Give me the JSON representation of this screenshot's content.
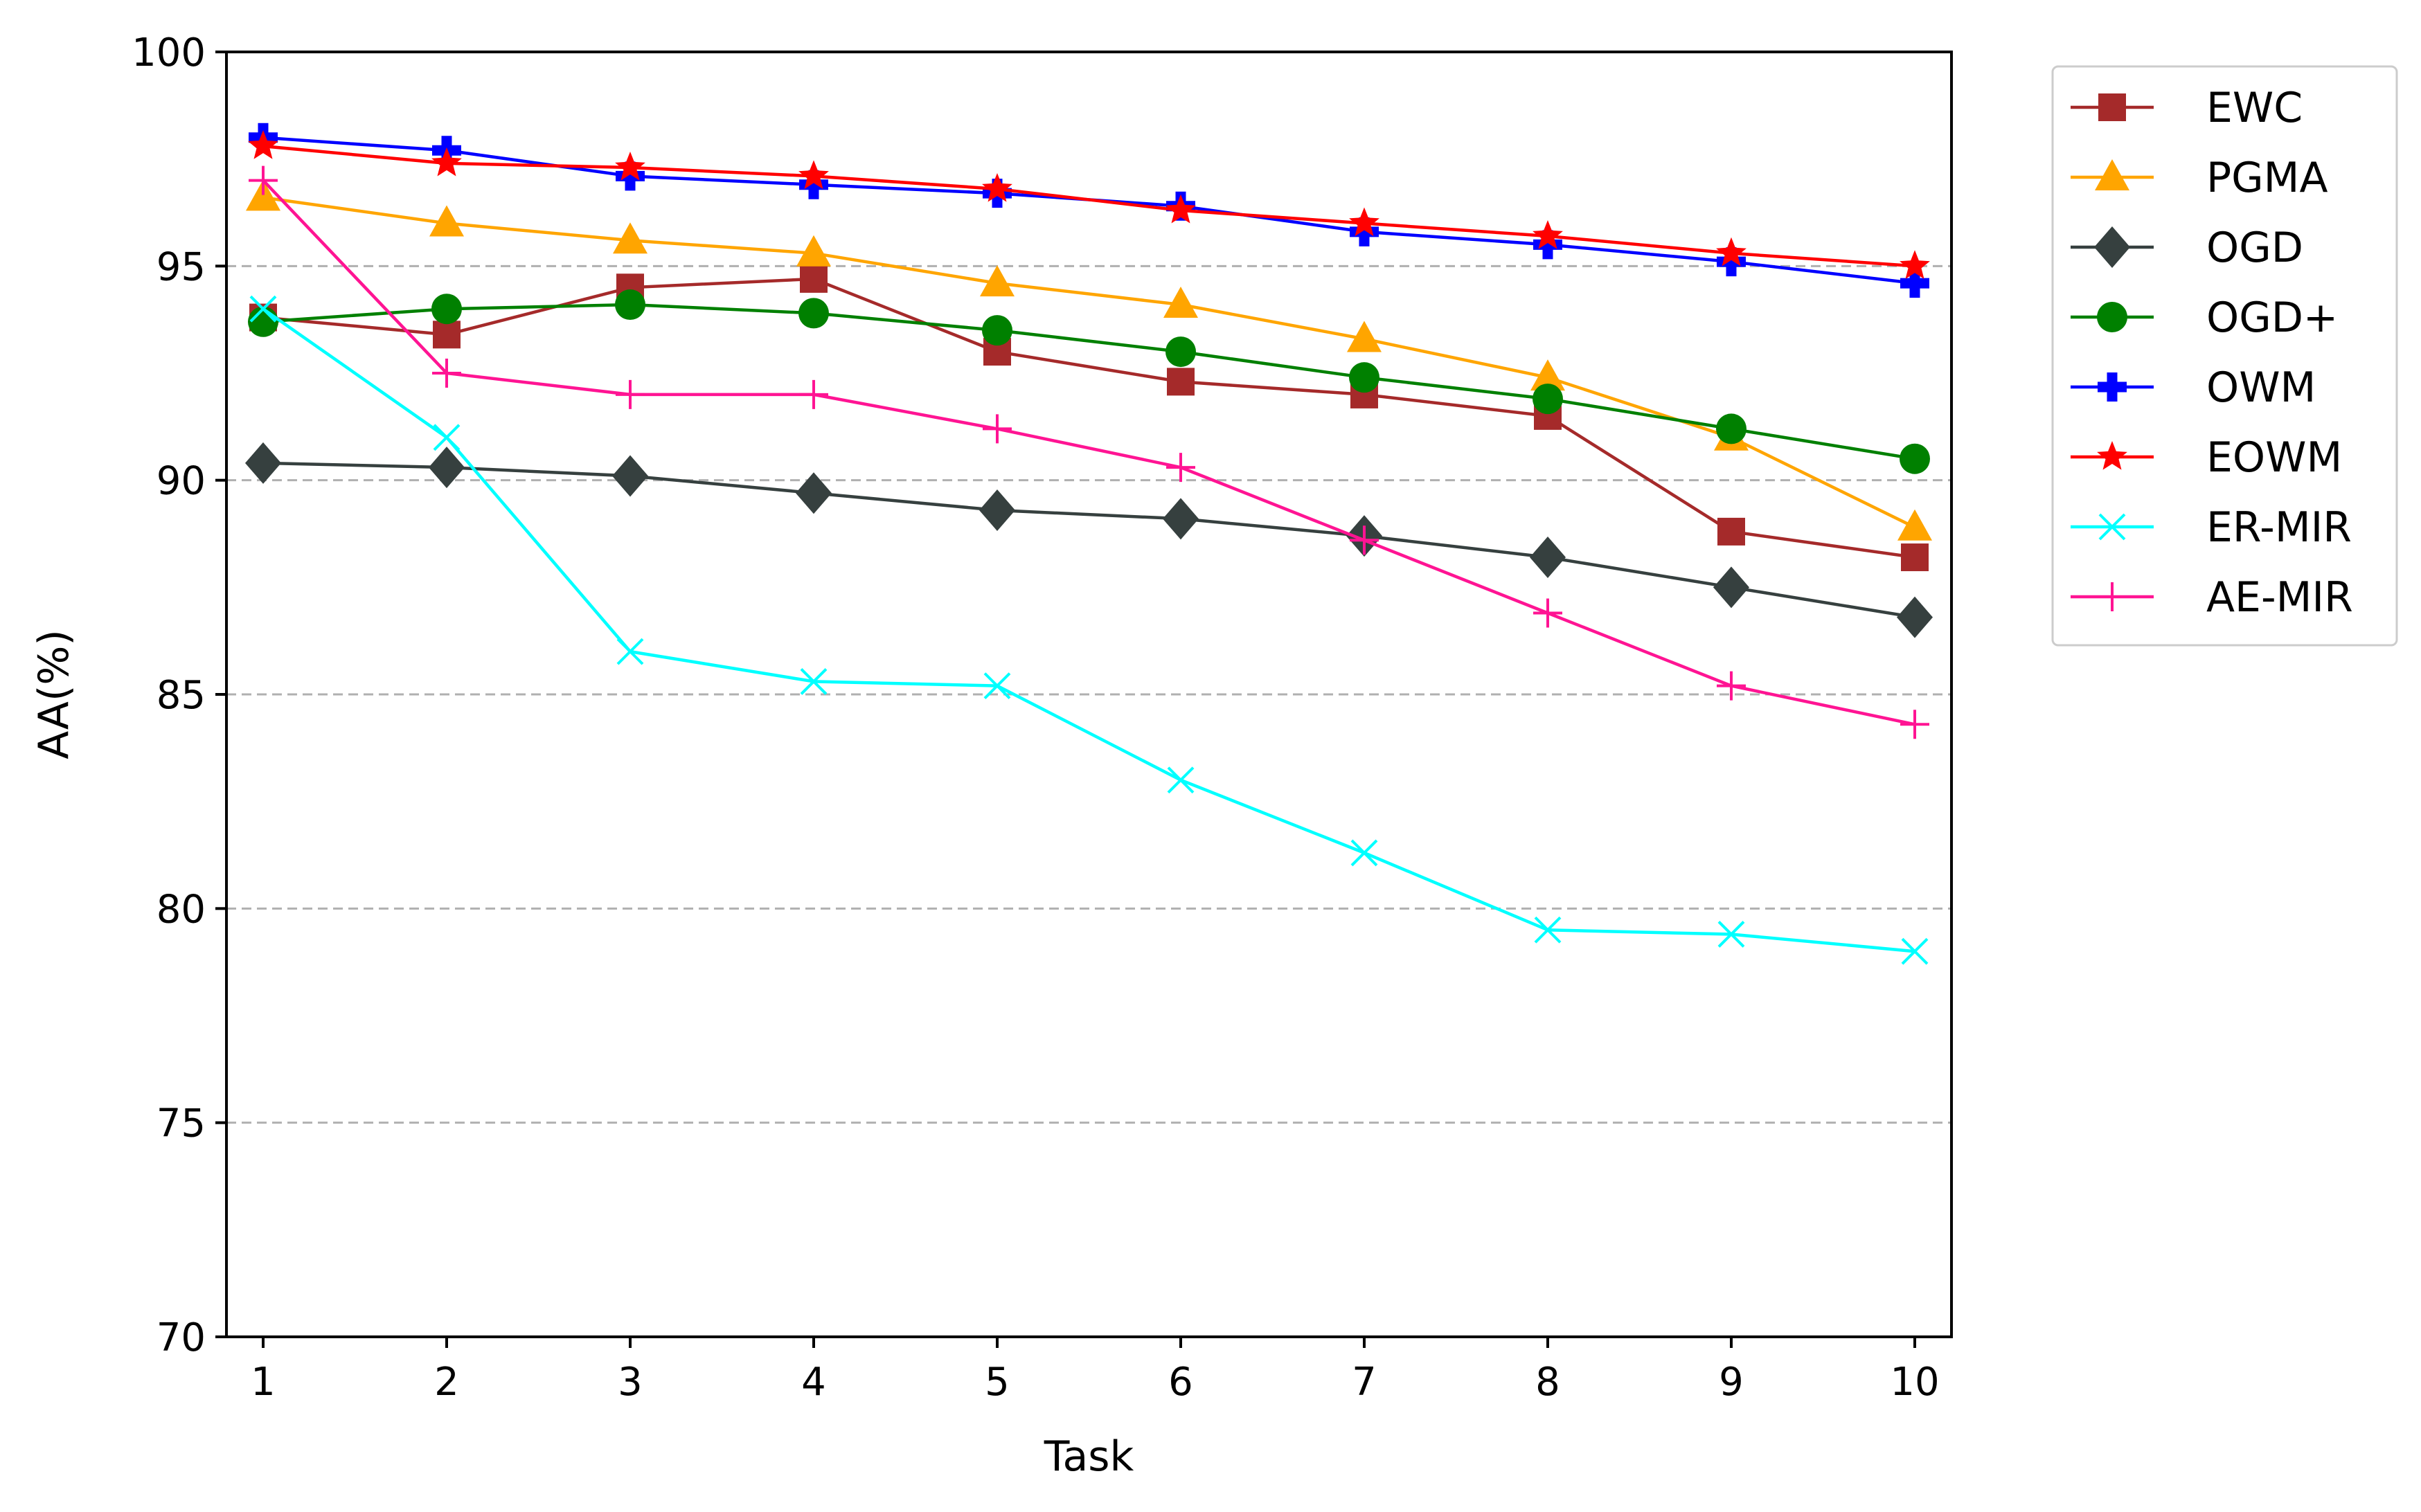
{
  "chart_data": {
    "type": "line",
    "title": "",
    "xlabel": "Task",
    "ylabel": "AA(%)",
    "x": [
      1,
      2,
      3,
      4,
      5,
      6,
      7,
      8,
      9,
      10
    ],
    "xticks": [
      "1",
      "2",
      "3",
      "4",
      "5",
      "6",
      "7",
      "8",
      "9",
      "10"
    ],
    "yticks": [
      "70",
      "75",
      "80",
      "85",
      "90",
      "95",
      "100"
    ],
    "xlim": [
      0.8,
      10.2
    ],
    "ylim": [
      70,
      100
    ],
    "grid": "horizontal dashed at 75, 80, 85, 90, 95",
    "legend_position": "outside-right-top",
    "series": [
      {
        "name": "EWC",
        "color": "#a52a2a",
        "marker": "square",
        "values": [
          93.8,
          93.4,
          94.5,
          94.7,
          93.0,
          92.3,
          92.0,
          91.5,
          88.8,
          88.2
        ]
      },
      {
        "name": "PGMA",
        "color": "#ffa500",
        "marker": "triangle",
        "values": [
          96.6,
          96.0,
          95.6,
          95.3,
          94.6,
          94.1,
          93.3,
          92.4,
          91.0,
          88.9
        ]
      },
      {
        "name": "OGD",
        "color": "#36403f",
        "marker": "diamond",
        "values": [
          90.4,
          90.3,
          90.1,
          89.7,
          89.3,
          89.1,
          88.7,
          88.2,
          87.5,
          86.8
        ]
      },
      {
        "name": "OGD+",
        "color": "#008000",
        "marker": "circle",
        "values": [
          93.7,
          94.0,
          94.1,
          93.9,
          93.5,
          93.0,
          92.4,
          91.9,
          91.2,
          90.5
        ]
      },
      {
        "name": "OWM",
        "color": "#0000ff",
        "marker": "plus-filled",
        "values": [
          98.0,
          97.7,
          97.1,
          96.9,
          96.7,
          96.4,
          95.8,
          95.5,
          95.1,
          94.6
        ]
      },
      {
        "name": "EOWM",
        "color": "#ff0000",
        "marker": "star",
        "values": [
          97.8,
          97.4,
          97.3,
          97.1,
          96.8,
          96.3,
          96.0,
          95.7,
          95.3,
          95.0
        ]
      },
      {
        "name": "ER-MIR",
        "color": "#00ffff",
        "marker": "x",
        "values": [
          94.0,
          91.0,
          86.0,
          85.3,
          85.2,
          83.0,
          81.3,
          79.5,
          79.4,
          79.0
        ]
      },
      {
        "name": "AE-MIR",
        "color": "#ff1493",
        "marker": "plus",
        "values": [
          97.0,
          92.5,
          92.0,
          92.0,
          91.2,
          90.3,
          88.6,
          86.9,
          85.2,
          84.3
        ]
      }
    ]
  }
}
